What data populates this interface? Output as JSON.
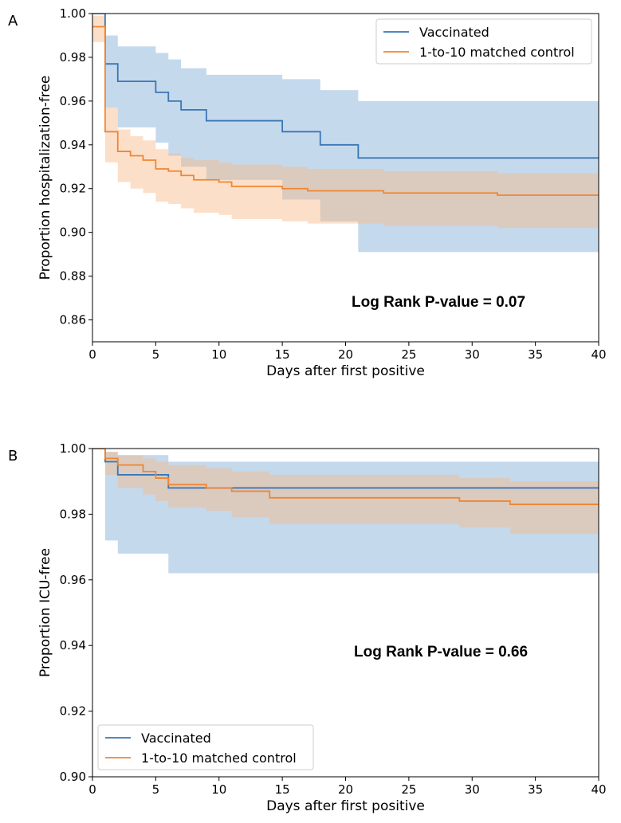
{
  "colors": {
    "vaccinated": "#3a76b4",
    "control": "#ef8633",
    "vaccinated_band": "#8ab4da",
    "control_band": "#f8b887"
  },
  "chart_data": [
    {
      "panel_label": "A",
      "type": "line",
      "step": true,
      "xlabel": "Days after first positive",
      "ylabel": "Proportion hospitalization-free",
      "xlim": [
        0,
        40
      ],
      "ylim": [
        0.85,
        1.0
      ],
      "xticks": [
        0,
        5,
        10,
        15,
        20,
        25,
        30,
        35,
        40
      ],
      "yticks": [
        0.86,
        0.88,
        0.9,
        0.92,
        0.94,
        0.96,
        0.98,
        1.0
      ],
      "ytick_labels": [
        "0.86",
        "0.88",
        "0.90",
        "0.92",
        "0.94",
        "0.96",
        "0.98",
        "1.00"
      ],
      "grid": false,
      "legend": {
        "position": "upper-right",
        "entries": [
          "Vaccinated",
          "1-to-10 matched control"
        ]
      },
      "annotation": "Log Rank P-value = 0.07",
      "series": [
        {
          "name": "Vaccinated",
          "x": [
            0,
            1,
            2,
            5,
            6,
            7,
            9,
            15,
            18,
            21,
            40
          ],
          "y": [
            1.0,
            0.977,
            0.969,
            0.964,
            0.96,
            0.956,
            0.951,
            0.946,
            0.94,
            0.934,
            0.934
          ],
          "upper": [
            1.0,
            0.99,
            0.985,
            0.982,
            0.979,
            0.975,
            0.972,
            0.97,
            0.965,
            0.96,
            0.96
          ],
          "lower": [
            1.0,
            0.957,
            0.948,
            0.941,
            0.935,
            0.93,
            0.924,
            0.915,
            0.905,
            0.891,
            0.891
          ]
        },
        {
          "name": "1-to-10 matched control",
          "x": [
            0,
            1,
            2,
            3,
            4,
            5,
            6,
            7,
            8,
            10,
            11,
            15,
            17,
            23,
            32,
            40
          ],
          "y": [
            0.994,
            0.946,
            0.937,
            0.935,
            0.933,
            0.929,
            0.928,
            0.926,
            0.924,
            0.923,
            0.921,
            0.92,
            0.919,
            0.918,
            0.917,
            0.917
          ],
          "upper": [
            0.999,
            0.957,
            0.947,
            0.944,
            0.942,
            0.938,
            0.936,
            0.934,
            0.933,
            0.932,
            0.931,
            0.93,
            0.929,
            0.928,
            0.927,
            0.927
          ],
          "lower": [
            0.987,
            0.932,
            0.923,
            0.92,
            0.918,
            0.914,
            0.913,
            0.911,
            0.909,
            0.908,
            0.906,
            0.905,
            0.904,
            0.903,
            0.902,
            0.902
          ]
        }
      ]
    },
    {
      "panel_label": "B",
      "type": "line",
      "step": true,
      "xlabel": "Days after first positive",
      "ylabel": "Proportion ICU-free",
      "xlim": [
        0,
        40
      ],
      "ylim": [
        0.9,
        1.0
      ],
      "xticks": [
        0,
        5,
        10,
        15,
        20,
        25,
        30,
        35,
        40
      ],
      "yticks": [
        0.9,
        0.92,
        0.94,
        0.96,
        0.98,
        1.0
      ],
      "ytick_labels": [
        "0.90",
        "0.92",
        "0.94",
        "0.96",
        "0.98",
        "1.00"
      ],
      "grid": false,
      "legend": {
        "position": "lower-left",
        "entries": [
          "Vaccinated",
          "1-to-10 matched control"
        ]
      },
      "annotation": "Log Rank P-value = 0.66",
      "series": [
        {
          "name": "Vaccinated",
          "x": [
            0,
            1,
            2,
            6,
            40
          ],
          "y": [
            1.0,
            0.996,
            0.992,
            0.988,
            0.988
          ],
          "upper": [
            1.0,
            0.999,
            0.998,
            0.996,
            0.996
          ],
          "lower": [
            1.0,
            0.972,
            0.968,
            0.962,
            0.962
          ]
        },
        {
          "name": "1-to-10 matched control",
          "x": [
            0,
            1,
            2,
            4,
            5,
            6,
            9,
            11,
            14,
            29,
            33,
            40
          ],
          "y": [
            1.0,
            0.997,
            0.995,
            0.993,
            0.991,
            0.989,
            0.988,
            0.987,
            0.985,
            0.984,
            0.983,
            0.983
          ],
          "upper": [
            1.0,
            0.999,
            0.998,
            0.997,
            0.996,
            0.995,
            0.994,
            0.993,
            0.992,
            0.991,
            0.99,
            0.989
          ],
          "lower": [
            1.0,
            0.992,
            0.988,
            0.986,
            0.984,
            0.982,
            0.981,
            0.979,
            0.977,
            0.976,
            0.974,
            0.974
          ]
        }
      ]
    }
  ]
}
